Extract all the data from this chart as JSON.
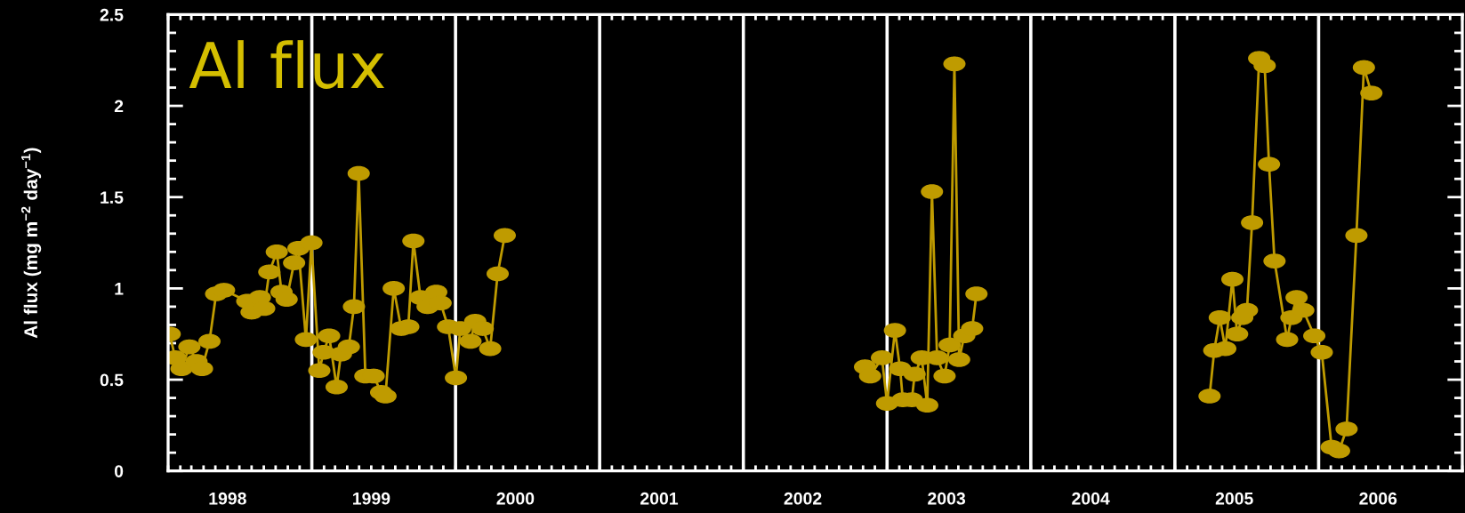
{
  "chart_data": {
    "type": "line",
    "title": "Al flux",
    "ylabel": "Al flux (mg m$^{−2}$ day$^{−1}$)",
    "x": [
      "1998-01-05",
      "1998-01-19",
      "1998-02-04",
      "1998-02-24",
      "1998-03-14",
      "1998-03-28",
      "1998-04-16",
      "1998-05-03",
      "1998-05-23",
      "1998-07-21",
      "1998-08-01",
      "1998-08-22",
      "1998-09-02",
      "1998-09-15",
      "1998-10-04",
      "1998-10-16",
      "1998-10-29",
      "1998-11-17",
      "1998-11-28",
      "1998-12-17",
      "1998-12-31",
      "1999-01-20",
      "1999-01-31",
      "1999-02-14",
      "1999-03-05",
      "1999-03-16",
      "1999-04-05",
      "1999-04-18",
      "1999-04-30",
      "1999-05-17",
      "1999-06-07",
      "1999-06-26",
      "1999-07-07",
      "1999-07-28",
      "1999-08-16",
      "1999-09-03",
      "1999-09-16",
      "1999-10-04",
      "1999-10-22",
      "1999-11-13",
      "1999-11-24",
      "1999-12-13",
      "2000-01-02",
      "2000-01-13",
      "2000-02-08",
      "2000-02-20",
      "2000-03-10",
      "2000-03-29",
      "2000-04-17",
      "2000-05-05",
      "2001-09-01",
      "2002-11-06",
      "2002-11-19",
      "2002-12-19",
      "2003-01-01",
      "2003-01-21",
      "2003-02-03",
      "2003-02-10",
      "2003-03-05",
      "2003-03-12",
      "2003-03-30",
      "2003-04-13",
      "2003-04-25",
      "2003-05-08",
      "2003-05-27",
      "2003-06-09",
      "2003-06-21",
      "2003-07-03",
      "2003-07-16",
      "2003-08-05",
      "2003-08-16",
      "2004-05-01",
      "2005-03-30",
      "2005-04-11",
      "2005-04-25",
      "2005-05-09",
      "2005-05-27",
      "2005-06-08",
      "2005-06-21",
      "2005-07-03",
      "2005-07-16",
      "2005-08-03",
      "2005-08-17",
      "2005-08-28",
      "2005-09-11",
      "2005-10-13",
      "2005-10-24",
      "2005-11-06",
      "2005-11-23",
      "2005-12-21",
      "2006-01-09",
      "2006-02-03",
      "2006-02-22",
      "2006-03-13",
      "2006-04-07",
      "2006-04-26",
      "2006-05-15"
    ],
    "values": [
      0.75,
      0.62,
      0.56,
      0.68,
      0.6,
      0.56,
      0.71,
      0.97,
      0.99,
      0.93,
      0.87,
      0.95,
      0.89,
      1.09,
      1.2,
      0.98,
      0.94,
      1.14,
      1.22,
      0.72,
      1.25,
      0.55,
      0.65,
      0.74,
      0.46,
      0.64,
      0.68,
      0.9,
      1.63,
      0.52,
      0.52,
      0.43,
      0.41,
      1.0,
      0.78,
      0.79,
      1.26,
      0.95,
      0.9,
      0.98,
      0.92,
      0.79,
      0.51,
      0.78,
      0.71,
      0.82,
      0.78,
      0.67,
      1.08,
      1.29,
      null,
      0.57,
      0.52,
      0.62,
      0.37,
      0.77,
      0.56,
      0.39,
      0.39,
      0.53,
      0.62,
      0.36,
      1.53,
      0.62,
      0.52,
      0.69,
      2.23,
      0.61,
      0.74,
      0.78,
      0.97,
      null,
      0.41,
      0.66,
      0.84,
      0.67,
      1.05,
      0.75,
      0.84,
      0.88,
      1.36,
      2.26,
      2.22,
      1.68,
      1.15,
      0.72,
      0.84,
      0.95,
      0.88,
      0.74,
      0.65,
      0.13,
      0.11,
      0.23,
      1.29,
      2.21,
      2.07
    ],
    "color": "#bf9b00",
    "marker": "circle",
    "line_style": "solid",
    "xlim": [
      "1998-01-01",
      "2007-01-01"
    ],
    "xticks": [
      {
        "value": "1998-06-01",
        "label": "1998"
      },
      {
        "value": "1999-06-01",
        "label": "1999"
      },
      {
        "value": "2000-06-01",
        "label": "2000"
      },
      {
        "value": "2001-06-01",
        "label": "2001"
      },
      {
        "value": "2002-06-01",
        "label": "2002"
      },
      {
        "value": "2003-06-01",
        "label": "2003"
      },
      {
        "value": "2004-06-01",
        "label": "2004"
      },
      {
        "value": "2005-06-01",
        "label": "2005"
      },
      {
        "value": "2006-06-01",
        "label": "2006"
      }
    ],
    "ylim": [
      0,
      2.5
    ],
    "yticks": [
      0,
      0.5,
      1,
      1.5,
      2,
      2.5
    ],
    "ref_lines": [
      {
        "axis": "x",
        "value": "1999-01-01",
        "color": "#ffffff"
      },
      {
        "axis": "x",
        "value": "2000-01-01",
        "color": "#ffffff"
      },
      {
        "axis": "x",
        "value": "2001-01-01",
        "color": "#ffffff"
      },
      {
        "axis": "x",
        "value": "2002-01-01",
        "color": "#ffffff"
      },
      {
        "axis": "x",
        "value": "2003-01-01",
        "color": "#ffffff"
      },
      {
        "axis": "x",
        "value": "2004-01-01",
        "color": "#ffffff"
      },
      {
        "axis": "x",
        "value": "2005-01-01",
        "color": "#ffffff"
      },
      {
        "axis": "x",
        "value": "2006-01-01",
        "color": "#ffffff"
      }
    ]
  }
}
